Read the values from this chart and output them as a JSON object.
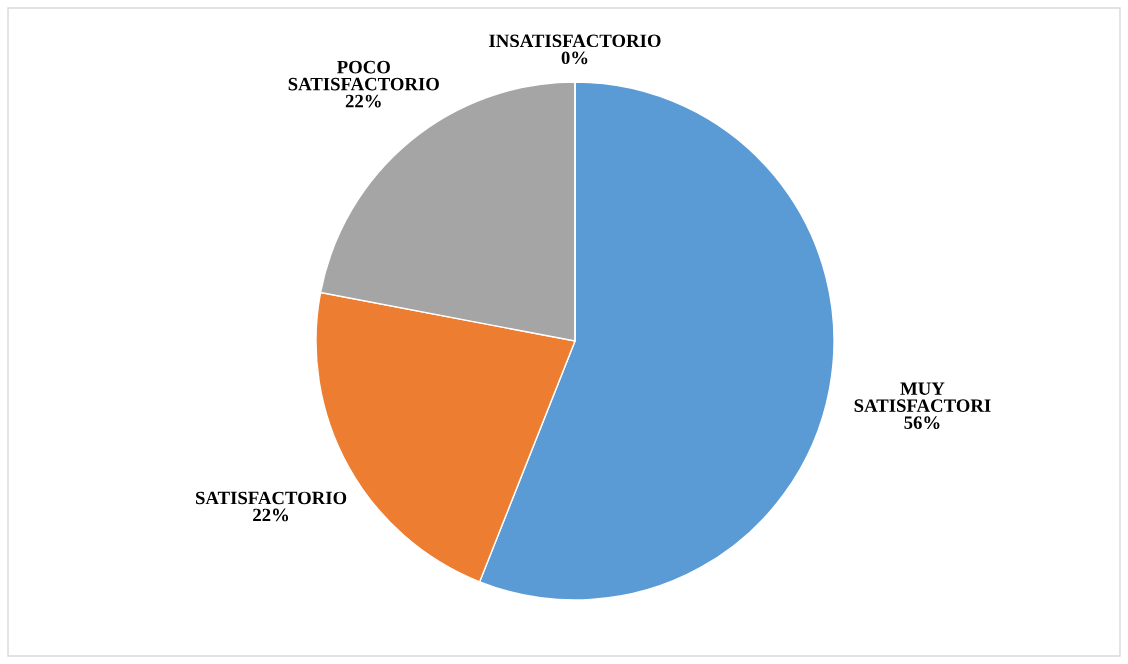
{
  "chart_data": {
    "type": "pie",
    "categories": [
      "MUY\nSATISFACTORI",
      "SATISFACTORIO",
      "POCO\nSATISFACTORIO",
      "INSATISFACTORIO"
    ],
    "values": [
      56,
      22,
      22,
      0
    ],
    "value_labels": [
      "56%",
      "22%",
      "22%",
      "0%"
    ],
    "colors": [
      "#5b9bd5",
      "#ed7d31",
      "#a5a5a5",
      "#ffc000"
    ]
  }
}
